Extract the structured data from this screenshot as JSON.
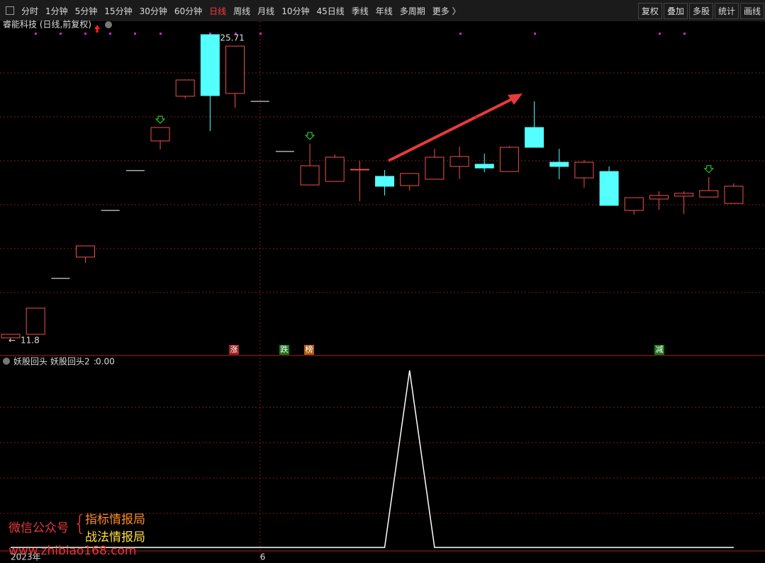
{
  "toolbar": {
    "left": [
      "分时",
      "1分钟",
      "5分钟",
      "15分钟",
      "30分钟",
      "60分钟",
      "日线",
      "周线",
      "月线",
      "10分钟",
      "45日线",
      "季线",
      "年线",
      "多周期",
      "更多 〉"
    ],
    "active": "日线",
    "right": [
      "复权",
      "叠加",
      "多股",
      "统计",
      "画线"
    ]
  },
  "chart_data": [
    {
      "type": "candlestick",
      "title": "睿能科技 (日线,前复权)",
      "categories": [
        "2023年",
        null,
        null,
        null,
        null,
        null,
        null,
        null,
        null,
        null,
        "6",
        null,
        null,
        null,
        null,
        null,
        null,
        null,
        null,
        null,
        null,
        null,
        null,
        null,
        null,
        null,
        null,
        null,
        null,
        null
      ],
      "open": [
        11.9,
        12.06,
        14.6,
        15.57,
        17.69,
        19.5,
        20.85,
        22.88,
        25.68,
        23.01,
        22.65,
        20.37,
        18.85,
        19.01,
        19.53,
        19.24,
        18.82,
        19.11,
        19.69,
        19.79,
        19.46,
        21.46,
        19.88,
        19.17,
        19.46,
        17.69,
        18.21,
        18.34,
        18.3,
        18.01
      ],
      "high": [
        12.06,
        13.25,
        14.6,
        16.08,
        17.69,
        19.5,
        21.46,
        23.62,
        25.71,
        25.16,
        22.65,
        20.37,
        20.72,
        20.24,
        19.95,
        19.53,
        19.37,
        20.49,
        20.59,
        20.27,
        20.62,
        22.65,
        20.49,
        19.98,
        19.69,
        18.27,
        18.56,
        18.56,
        19.21,
        18.92
      ],
      "low": [
        11.8,
        12.06,
        14.6,
        15.31,
        17.69,
        19.5,
        20.46,
        22.78,
        21.3,
        22.36,
        22.65,
        20.37,
        18.85,
        19.01,
        18.11,
        18.37,
        18.59,
        19.11,
        19.11,
        19.43,
        19.46,
        20.56,
        19.11,
        18.72,
        17.92,
        17.5,
        17.72,
        17.53,
        18.3,
        18.01
      ],
      "close": [
        12.06,
        13.25,
        14.6,
        16.08,
        17.69,
        19.5,
        21.46,
        23.62,
        22.91,
        25.16,
        22.65,
        20.37,
        19.72,
        20.11,
        19.56,
        18.79,
        19.37,
        20.11,
        20.14,
        19.62,
        20.56,
        20.56,
        19.69,
        19.88,
        17.92,
        18.27,
        18.37,
        18.47,
        18.59,
        18.79
      ],
      "up_color": "#f0504c",
      "down_color": "#54ffff",
      "doji_color": "#ffffff",
      "ylim": [
        11.16,
        26.29
      ],
      "tags": [
        "涨",
        "跌",
        "榜",
        "减"
      ]
    },
    {
      "type": "line",
      "title": "妖股回头",
      "series": [
        {
          "name": "妖股回头2",
          "color": "#ffffff",
          "values": [
            0,
            0,
            0,
            0,
            0,
            0,
            0,
            0,
            0,
            0,
            0,
            0,
            0,
            0,
            0,
            0,
            1,
            0,
            0,
            0,
            0,
            0,
            0,
            0,
            0,
            0,
            0,
            0,
            0,
            0
          ],
          "last_value_label": "0.00"
        }
      ],
      "ylim": [
        0,
        1
      ]
    }
  ],
  "watermark": {
    "account": "微信公众号",
    "names": [
      "指标情报局",
      "战法情报局"
    ],
    "url": "www.zhibiao168.com"
  }
}
